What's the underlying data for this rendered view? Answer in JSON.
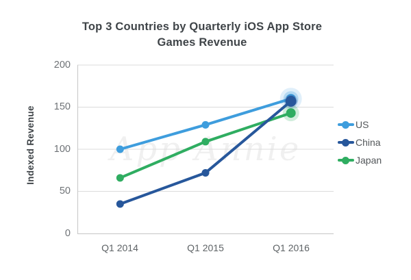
{
  "watermark": "App Annie",
  "chart_data": {
    "type": "line",
    "title": "Top 3 Countries by Quarterly iOS App Store Games Revenue",
    "title_lines": [
      "Top 3 Countries by Quarterly iOS App Store",
      "Games Revenue"
    ],
    "ylabel": "Indexed Revenue",
    "xlabel": "",
    "categories": [
      "Q1 2014",
      "Q1 2015",
      "Q1 2016"
    ],
    "series": [
      {
        "name": "US",
        "color": "#3E9DDD",
        "values": [
          100,
          129,
          160
        ]
      },
      {
        "name": "China",
        "color": "#27579B",
        "values": [
          35,
          72,
          157
        ]
      },
      {
        "name": "Japan",
        "color": "#2FAD61",
        "values": [
          66,
          109,
          143
        ]
      }
    ],
    "ylim": [
      0,
      200
    ],
    "yticks": [
      0,
      50,
      100,
      150,
      200
    ],
    "grid": true,
    "legend_position": "right",
    "highlight_last_point": true,
    "colors": {
      "grid": "#DBDBDB",
      "axis": "#C6C6C6",
      "title_text": "#3F4448",
      "tick_text": "#6E7276"
    }
  }
}
